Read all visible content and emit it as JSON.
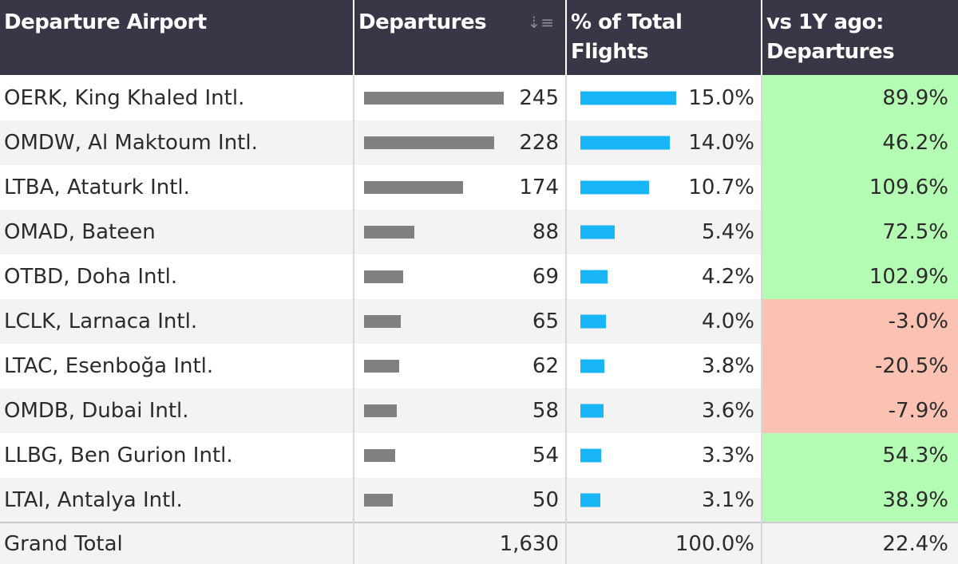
{
  "headers": {
    "airport": "Departure Airport",
    "departures": "Departures",
    "pct_line1": "% of Total",
    "pct_line2": "Flights",
    "vs_line1": "vs 1Y ago:",
    "vs_line2": "Departures"
  },
  "colors": {
    "header_bg": "#393747",
    "departures_bar": "#808080",
    "pct_bar": "#18b6f6",
    "positive": "#b4fbb4",
    "negative": "#fbc2b4"
  },
  "max_departures": 245,
  "max_pct": 15.0,
  "rows": [
    {
      "airport": "OERK, King Khaled Intl.",
      "departures": 245,
      "departures_label": "245",
      "pct": 15.0,
      "pct_label": "15.0%",
      "vs": 89.9,
      "vs_label": "89.9%"
    },
    {
      "airport": "OMDW, Al Maktoum Intl.",
      "departures": 228,
      "departures_label": "228",
      "pct": 14.0,
      "pct_label": "14.0%",
      "vs": 46.2,
      "vs_label": "46.2%"
    },
    {
      "airport": "LTBA, Ataturk Intl.",
      "departures": 174,
      "departures_label": "174",
      "pct": 10.7,
      "pct_label": "10.7%",
      "vs": 109.6,
      "vs_label": "109.6%"
    },
    {
      "airport": "OMAD, Bateen",
      "departures": 88,
      "departures_label": "88",
      "pct": 5.4,
      "pct_label": "5.4%",
      "vs": 72.5,
      "vs_label": "72.5%"
    },
    {
      "airport": "OTBD, Doha Intl.",
      "departures": 69,
      "departures_label": "69",
      "pct": 4.2,
      "pct_label": "4.2%",
      "vs": 102.9,
      "vs_label": "102.9%"
    },
    {
      "airport": "LCLK, Larnaca Intl.",
      "departures": 65,
      "departures_label": "65",
      "pct": 4.0,
      "pct_label": "4.0%",
      "vs": -3.0,
      "vs_label": "-3.0%"
    },
    {
      "airport": "LTAC, Esenboğa Intl.",
      "departures": 62,
      "departures_label": "62",
      "pct": 3.8,
      "pct_label": "3.8%",
      "vs": -20.5,
      "vs_label": "-20.5%"
    },
    {
      "airport": "OMDB, Dubai Intl.",
      "departures": 58,
      "departures_label": "58",
      "pct": 3.6,
      "pct_label": "3.6%",
      "vs": -7.9,
      "vs_label": "-7.9%"
    },
    {
      "airport": "LLBG, Ben Gurion Intl.",
      "departures": 54,
      "departures_label": "54",
      "pct": 3.3,
      "pct_label": "3.3%",
      "vs": 54.3,
      "vs_label": "54.3%"
    },
    {
      "airport": "LTAI, Antalya Intl.",
      "departures": 50,
      "departures_label": "50",
      "pct": 3.1,
      "pct_label": "3.1%",
      "vs": 38.9,
      "vs_label": "38.9%"
    }
  ],
  "total": {
    "label": "Grand Total",
    "departures": "1,630",
    "pct": "100.0%",
    "vs": "22.4%"
  }
}
